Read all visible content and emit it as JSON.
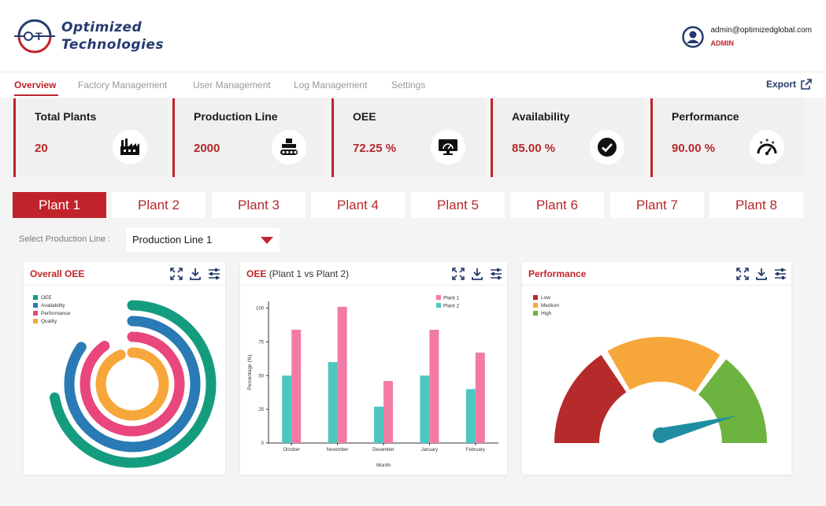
{
  "brand": {
    "line1": "Optimized",
    "line2": "Technologies"
  },
  "user": {
    "email": "admin@optimizedglobal.com",
    "role": "ADMIN"
  },
  "nav": {
    "items": [
      "Overview",
      "Factory Management",
      "User Management",
      "Log Management",
      "Settings"
    ],
    "export": "Export"
  },
  "kpis": [
    {
      "title": "Total Plants",
      "value": "20",
      "icon": "factory-icon"
    },
    {
      "title": "Production Line",
      "value": "2000",
      "icon": "conveyor-icon"
    },
    {
      "title": "OEE",
      "value": "72.25 %",
      "icon": "monitor-gauge-icon"
    },
    {
      "title": "Availability",
      "value": "85.00 %",
      "icon": "check-circle-icon"
    },
    {
      "title": "Performance",
      "value": "90.00 %",
      "icon": "speedometer-icon"
    }
  ],
  "plants": [
    "Plant 1",
    "Plant 2",
    "Plant 3",
    "Plant 4",
    "Plant 5",
    "Plant 6",
    "Plant 7",
    "Plant 8"
  ],
  "active_plant": "Plant 1",
  "production_line": {
    "label": "Select Production Line :",
    "value": "Production Line 1"
  },
  "panels": {
    "overall": {
      "title": "Overall OEE"
    },
    "compare": {
      "title": "OEE",
      "subtitle": "(Plant 1 vs Plant 2)"
    },
    "performance": {
      "title": "Performance"
    }
  },
  "colors": {
    "accent": "#c0242a",
    "navy": "#253a6e"
  },
  "chart_data": [
    {
      "type": "radial-bar",
      "series": [
        {
          "name": "OEE",
          "value": 72.25,
          "color": "#159c7f"
        },
        {
          "name": "Availability",
          "value": 85,
          "color": "#2a7ab5"
        },
        {
          "name": "Performance",
          "value": 90,
          "color": "#e8467c"
        },
        {
          "name": "Quality",
          "value": 94,
          "color": "#f7a73a"
        }
      ],
      "legend": "top-left"
    },
    {
      "type": "bar",
      "categories": [
        "October",
        "November",
        "December",
        "January",
        "February"
      ],
      "series": [
        {
          "name": "Plant 1",
          "values": [
            84,
            101,
            46,
            84,
            67
          ],
          "color": "#f27ba6"
        },
        {
          "name": "Plant 2",
          "values": [
            50,
            60,
            27,
            50,
            40
          ],
          "color": "#4ec6c0"
        }
      ],
      "xlabel": "Month",
      "ylabel": "Percentage (%)",
      "ylim": [
        0,
        105
      ],
      "yticks": [
        0,
        25,
        50,
        75,
        100
      ],
      "legend": "top-right"
    },
    {
      "type": "gauge",
      "bands": [
        {
          "name": "Low",
          "color": "#b52a2a"
        },
        {
          "name": "Medium",
          "color": "#f7a73a"
        },
        {
          "name": "High",
          "color": "#6cb33f"
        }
      ],
      "needle_color": "#1f8ea0",
      "value": 0.92,
      "legend": "top-left"
    }
  ]
}
